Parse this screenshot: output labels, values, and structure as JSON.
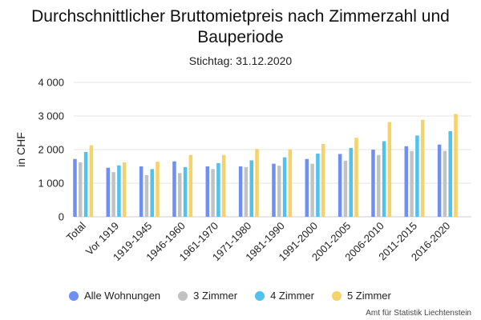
{
  "chart_data": {
    "type": "bar",
    "title": "Durchschnittlicher Bruttomietpreis nach Zimmerzahl und Bauperiode",
    "subtitle": "Stichtag: 31.12.2020",
    "ylabel": "in CHF",
    "xlabel": "",
    "ylim": [
      0,
      4000
    ],
    "yticks": [
      0,
      1000,
      2000,
      3000,
      4000
    ],
    "ytick_labels": [
      "0",
      "1 000",
      "2 000",
      "3 000",
      "4 000"
    ],
    "grid": true,
    "legend_position": "bottom",
    "categories": [
      "Total",
      "Vor 1919",
      "1919-1945",
      "1946-1960",
      "1961-1970",
      "1971-1980",
      "1981-1990",
      "1991-2000",
      "2001-2005",
      "2006-2010",
      "2011-2015",
      "2016-2020"
    ],
    "series": [
      {
        "name": "Alle Wohnungen",
        "color": "#6f8ff4",
        "values": [
          1720,
          1460,
          1500,
          1650,
          1500,
          1500,
          1580,
          1720,
          1870,
          2000,
          2100,
          2150
        ]
      },
      {
        "name": "3 Zimmer",
        "color": "#c2c2c2",
        "values": [
          1620,
          1330,
          1240,
          1300,
          1420,
          1480,
          1520,
          1580,
          1670,
          1840,
          1960,
          1960
        ]
      },
      {
        "name": "4 Zimmer",
        "color": "#51c1ee",
        "values": [
          1930,
          1530,
          1420,
          1480,
          1600,
          1680,
          1770,
          1880,
          2050,
          2250,
          2420,
          2550
        ]
      },
      {
        "name": "5 Zimmer",
        "color": "#f5d26b",
        "values": [
          2130,
          1620,
          1640,
          1840,
          1840,
          2020,
          2010,
          2170,
          2350,
          2820,
          2890,
          3060
        ]
      }
    ]
  },
  "credit": "Amt für Statistik Liechtenstein"
}
